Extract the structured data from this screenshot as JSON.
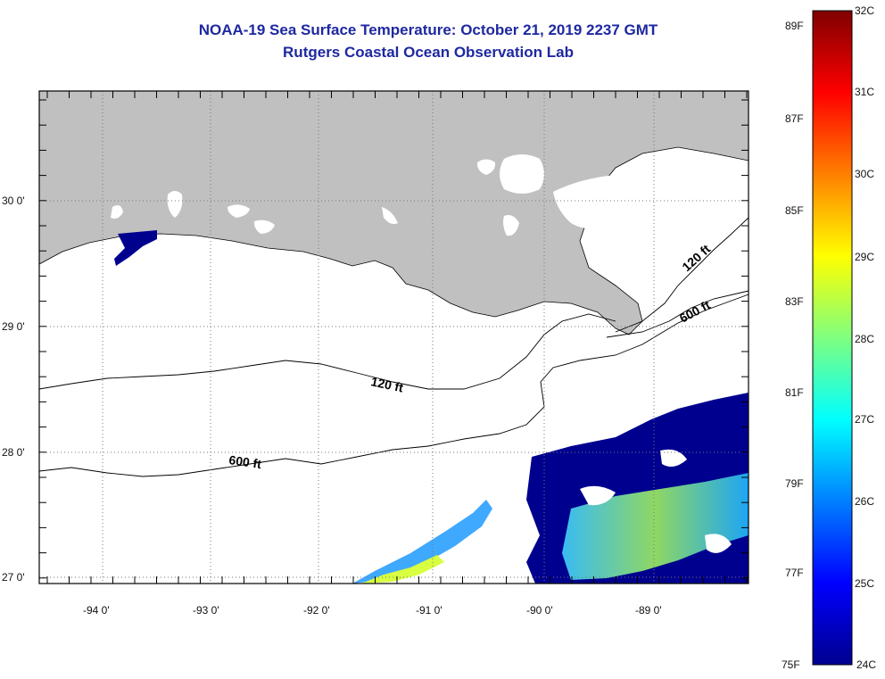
{
  "header": {
    "title": "NOAA-19 Sea Surface Temperature:  October 21, 2019 2237 GMT",
    "subtitle": "Rutgers Coastal Ocean Observation Lab"
  },
  "map": {
    "lat_labels": [
      "30 0'",
      "29 0'",
      "28 0'",
      "27 0'"
    ],
    "lon_labels": [
      "-94 0'",
      "-93 0'",
      "-92 0'",
      "-91 0'",
      "-90 0'",
      "-89 0'"
    ],
    "contours": {
      "upper_120": "120 ft",
      "upper_600": "600 ft",
      "mid_120": "120 ft",
      "lower_600": "600 ft"
    },
    "colors": {
      "land": "#c0c0c0",
      "cold": "#00008f",
      "warm": "#7fff7f"
    }
  },
  "colorbar": {
    "fahrenheit": [
      "89F",
      "87F",
      "85F",
      "83F",
      "81F",
      "79F",
      "77F",
      "75F"
    ],
    "celsius": [
      "32C",
      "31C",
      "30C",
      "29C",
      "28C",
      "27C",
      "26C",
      "25C",
      "24C"
    ]
  }
}
